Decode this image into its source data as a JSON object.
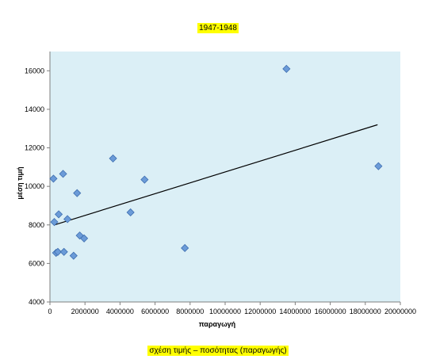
{
  "title": "1947-1948",
  "caption": "σχέση τιμής – ποσότητας (παραγωγής)",
  "chart_data": {
    "type": "scatter",
    "xlabel": "παραγωγή",
    "ylabel": "μέση τιμή",
    "xlim": [
      0,
      20000000
    ],
    "ylim": [
      4000,
      17000
    ],
    "xticks": [
      0,
      2000000,
      4000000,
      6000000,
      8000000,
      10000000,
      12000000,
      14000000,
      16000000,
      18000000,
      20000000
    ],
    "yticks": [
      4000,
      6000,
      8000,
      10000,
      12000,
      14000,
      16000
    ],
    "x_tick_labels": [
      "0",
      "2000000",
      "4000000",
      "6000000",
      "8000000",
      "10000000",
      "12000000",
      "14000000",
      "16000000",
      "18000000",
      "20000000"
    ],
    "y_tick_labels": [
      "4000",
      "6000",
      "8000",
      "10000",
      "12000",
      "14000",
      "16000"
    ],
    "points": [
      {
        "x": 200000,
        "y": 10400
      },
      {
        "x": 250000,
        "y": 8150
      },
      {
        "x": 350000,
        "y": 6550
      },
      {
        "x": 450000,
        "y": 6600
      },
      {
        "x": 500000,
        "y": 8550
      },
      {
        "x": 750000,
        "y": 10650
      },
      {
        "x": 800000,
        "y": 6600
      },
      {
        "x": 1000000,
        "y": 8300
      },
      {
        "x": 1350000,
        "y": 6400
      },
      {
        "x": 1550000,
        "y": 9650
      },
      {
        "x": 1700000,
        "y": 7450
      },
      {
        "x": 1950000,
        "y": 7300
      },
      {
        "x": 3600000,
        "y": 11450
      },
      {
        "x": 4600000,
        "y": 8650
      },
      {
        "x": 5400000,
        "y": 10350
      },
      {
        "x": 7700000,
        "y": 6800
      },
      {
        "x": 13500000,
        "y": 16100
      },
      {
        "x": 18750000,
        "y": 11050
      }
    ],
    "trendline": {
      "type": "linear",
      "from": {
        "x": 250000,
        "y": 8000
      },
      "to": {
        "x": 18700000,
        "y": 13200
      }
    },
    "colors": {
      "plot_bg": "#dbeff6",
      "marker": "#6b9bd8",
      "marker_stroke": "#3f6fb0",
      "trendline": "#000000"
    },
    "grid": false,
    "legend": "none"
  }
}
